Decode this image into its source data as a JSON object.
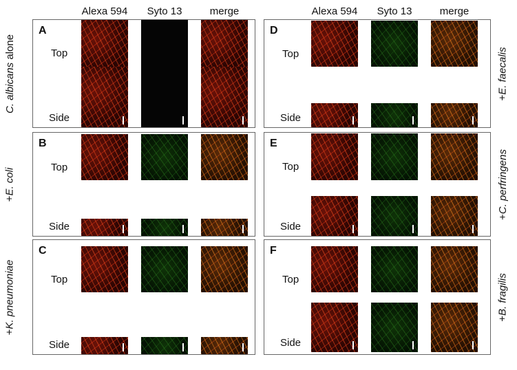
{
  "columns": [
    "Alexa 594",
    "Syto 13",
    "merge"
  ],
  "row_labels": {
    "top": "Top",
    "side": "Side"
  },
  "panels": [
    {
      "letter": "A",
      "species_prefix": "",
      "species": "C. albicans",
      "species_suffix": " alone"
    },
    {
      "letter": "B",
      "species_prefix": "+",
      "species": "E. coli",
      "species_suffix": ""
    },
    {
      "letter": "C",
      "species_prefix": "+",
      "species": "K. pneumoniae",
      "species_suffix": ""
    },
    {
      "letter": "D",
      "species_prefix": "+",
      "species": "E. faecalis",
      "species_suffix": ""
    },
    {
      "letter": "E",
      "species_prefix": "+",
      "species": "C. perfringens",
      "species_suffix": ""
    },
    {
      "letter": "F",
      "species_prefix": "+",
      "species": "B. fragilis",
      "species_suffix": ""
    }
  ],
  "colors": {
    "alexa": "#d8361a",
    "syto": "#3aa028",
    "merge": "#e08a20",
    "border": "#666666"
  }
}
